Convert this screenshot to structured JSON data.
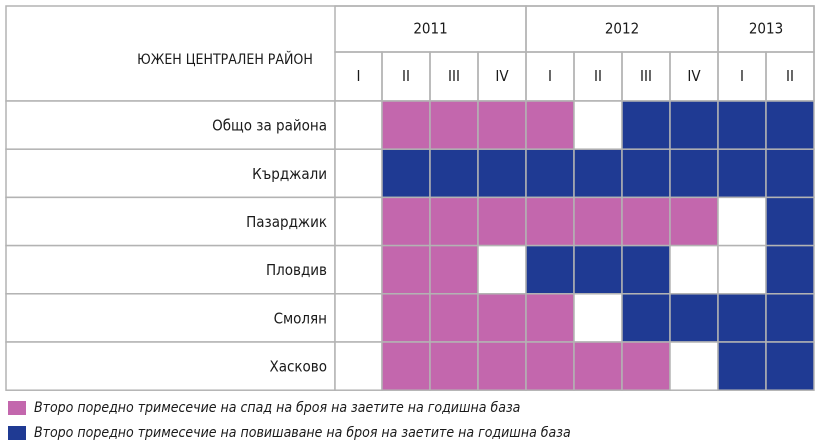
{
  "chart_data": {
    "type": "heatmap",
    "corner_label": "ЮЖЕН ЦЕНТРАЛЕН РАЙОН",
    "years": [
      {
        "label": "2011",
        "quarters": [
          "I",
          "II",
          "III",
          "IV"
        ]
      },
      {
        "label": "2012",
        "quarters": [
          "I",
          "II",
          "III",
          "IV"
        ]
      },
      {
        "label": "2013",
        "quarters": [
          "I",
          "II"
        ]
      }
    ],
    "rows": [
      {
        "label": "Общо за района",
        "values": [
          0,
          1,
          1,
          1,
          1,
          0,
          2,
          2,
          2,
          2
        ]
      },
      {
        "label": "Кърджали",
        "values": [
          0,
          2,
          2,
          2,
          2,
          2,
          2,
          2,
          2,
          2
        ]
      },
      {
        "label": "Пазарджик",
        "values": [
          0,
          1,
          1,
          1,
          1,
          1,
          1,
          1,
          0,
          2
        ]
      },
      {
        "label": "Пловдив",
        "values": [
          0,
          1,
          1,
          0,
          2,
          2,
          2,
          0,
          0,
          2
        ]
      },
      {
        "label": "Смолян",
        "values": [
          0,
          1,
          1,
          1,
          1,
          0,
          2,
          2,
          2,
          2
        ]
      },
      {
        "label": "Хасково",
        "values": [
          0,
          1,
          1,
          1,
          1,
          1,
          1,
          0,
          2,
          2
        ]
      }
    ],
    "legend": [
      {
        "code": 1,
        "label": "Второ поредно тримесечие на спад на броя на заетите на годишна база",
        "color": "#c367ad"
      },
      {
        "code": 2,
        "label": "Второ поредно тримесечие на повишаване на броя на заетите на годишна база",
        "color": "#1f3a93"
      }
    ],
    "colors": {
      "empty": "#ffffff",
      "grid": "#b3b3b3",
      "header_bg": "#ffffff"
    }
  }
}
